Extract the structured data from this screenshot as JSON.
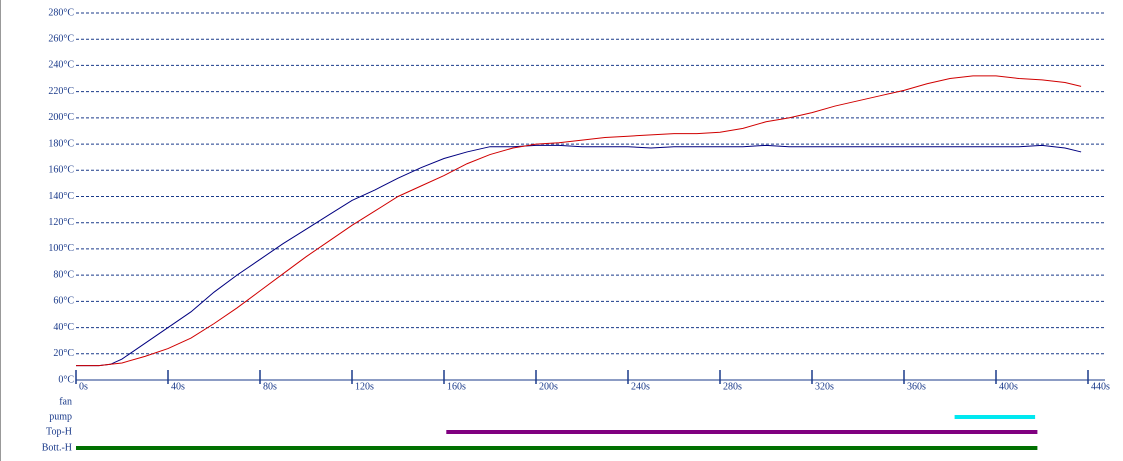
{
  "chart_data": {
    "type": "line",
    "x": [
      0,
      10,
      15,
      20,
      30,
      40,
      50,
      60,
      70,
      80,
      90,
      100,
      110,
      120,
      130,
      140,
      150,
      160,
      170,
      180,
      190,
      200,
      210,
      220,
      230,
      240,
      250,
      260,
      270,
      280,
      290,
      300,
      310,
      320,
      330,
      340,
      350,
      360,
      370,
      380,
      390,
      400,
      410,
      420,
      430,
      437
    ],
    "series": [
      {
        "color": "#000080",
        "values": [
          11,
          11,
          12,
          16,
          28,
          40,
          52,
          67,
          80,
          92,
          104,
          115,
          126,
          137,
          145,
          154,
          162,
          169,
          174,
          178,
          178,
          179,
          179,
          178,
          178,
          178,
          177,
          178,
          178,
          178,
          178,
          179,
          178,
          178,
          178,
          178,
          178,
          178,
          178,
          178,
          178,
          178,
          178,
          179,
          177,
          174
        ]
      },
      {
        "color": "#d00000",
        "values": [
          11,
          11,
          12,
          13,
          18,
          24,
          32,
          43,
          55,
          68,
          81,
          94,
          106,
          118,
          129,
          140,
          148,
          156,
          165,
          172,
          177,
          180,
          181,
          183,
          185,
          186,
          187,
          188,
          188,
          189,
          192,
          197,
          200,
          204,
          209,
          213,
          217,
          221,
          226,
          230,
          232,
          232,
          230,
          229,
          227,
          224
        ]
      }
    ],
    "xlim": [
      0,
      440
    ],
    "xticks": [
      {
        "value": 0,
        "label": "0s"
      },
      {
        "value": 40,
        "label": "40s"
      },
      {
        "value": 80,
        "label": "80s"
      },
      {
        "value": 120,
        "label": "120s"
      },
      {
        "value": 160,
        "label": "160s"
      },
      {
        "value": 200,
        "label": "200s"
      },
      {
        "value": 240,
        "label": "240s"
      },
      {
        "value": 280,
        "label": "280s"
      },
      {
        "value": 320,
        "label": "320s"
      },
      {
        "value": 360,
        "label": "360s"
      },
      {
        "value": 400,
        "label": "400s"
      },
      {
        "value": 440,
        "label": "440s"
      }
    ],
    "ylim": [
      0,
      280
    ],
    "yticks": [
      {
        "value": 0,
        "label": "0°C"
      },
      {
        "value": 20,
        "label": "20°C"
      },
      {
        "value": 40,
        "label": "40°C"
      },
      {
        "value": 60,
        "label": "60°C"
      },
      {
        "value": 80,
        "label": "80°C"
      },
      {
        "value": 100,
        "label": "100°C"
      },
      {
        "value": 120,
        "label": "120°C"
      },
      {
        "value": 140,
        "label": "140°C"
      },
      {
        "value": 160,
        "label": "160°C"
      },
      {
        "value": 180,
        "label": "180°C"
      },
      {
        "value": 200,
        "label": "200°C"
      },
      {
        "value": 220,
        "label": "220°C"
      },
      {
        "value": 240,
        "label": "240°C"
      },
      {
        "value": 260,
        "label": "260°C"
      },
      {
        "value": 280,
        "label": "280°C"
      }
    ],
    "grid": true,
    "timeline": [
      {
        "label": "fan",
        "color": "#00e0f0",
        "segments": []
      },
      {
        "label": "pump",
        "color": "#00e8f0",
        "segments": [
          [
            382,
            417
          ]
        ]
      },
      {
        "label": "Top-H",
        "color": "#800080",
        "segments": [
          [
            161,
            418
          ]
        ]
      },
      {
        "label": "Bott.-H",
        "color": "#007000",
        "segments": [
          [
            0,
            418
          ]
        ]
      }
    ]
  }
}
